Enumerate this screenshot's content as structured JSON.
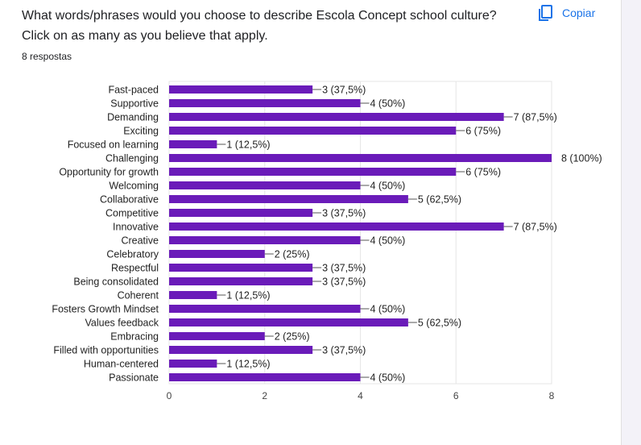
{
  "question": "What words/phrases would you choose to describe Escola Concept school culture? Click on as many as you believe that apply.",
  "response_count": "8 respostas",
  "copy_label": "Copiar",
  "copy_icon": "copy-icon",
  "colors": {
    "bar": "#6a1bb9",
    "accent": "#1a73e8",
    "grid": "#e6e6e6"
  },
  "chart_data": {
    "type": "bar",
    "orientation": "horizontal",
    "title": "",
    "xlabel": "",
    "ylabel": "",
    "xlim": [
      0,
      8
    ],
    "x_ticks": [
      "0",
      "2",
      "4",
      "6",
      "8"
    ],
    "grid": true,
    "legend": "none",
    "categories": [
      "Fast-paced",
      "Supportive",
      "Demanding",
      "Exciting",
      "Focused on learning",
      "Challenging",
      "Opportunity for growth",
      "Welcoming",
      "Collaborative",
      "Competitive",
      "Innovative",
      "Creative",
      "Celebratory",
      "Respectful",
      "Being consolidated",
      "Coherent",
      "Fosters Growth Mindset",
      "Values feedback",
      "Embracing",
      "Filled with opportunities",
      "Human-centered",
      "Passionate"
    ],
    "values": [
      3,
      4,
      7,
      6,
      1,
      8,
      6,
      4,
      5,
      3,
      7,
      4,
      2,
      3,
      3,
      1,
      4,
      5,
      2,
      3,
      1,
      4
    ],
    "value_labels": [
      "3 (37,5%)",
      "4 (50%)",
      "7 (87,5%)",
      "6 (75%)",
      "1 (12,5%)",
      "8 (100%)",
      "6 (75%)",
      "4 (50%)",
      "5 (62,5%)",
      "3 (37,5%)",
      "7 (87,5%)",
      "4 (50%)",
      "2 (25%)",
      "3 (37,5%)",
      "3 (37,5%)",
      "1 (12,5%)",
      "4 (50%)",
      "5 (62,5%)",
      "2 (25%)",
      "3 (37,5%)",
      "1 (12,5%)",
      "4 (50%)"
    ]
  }
}
